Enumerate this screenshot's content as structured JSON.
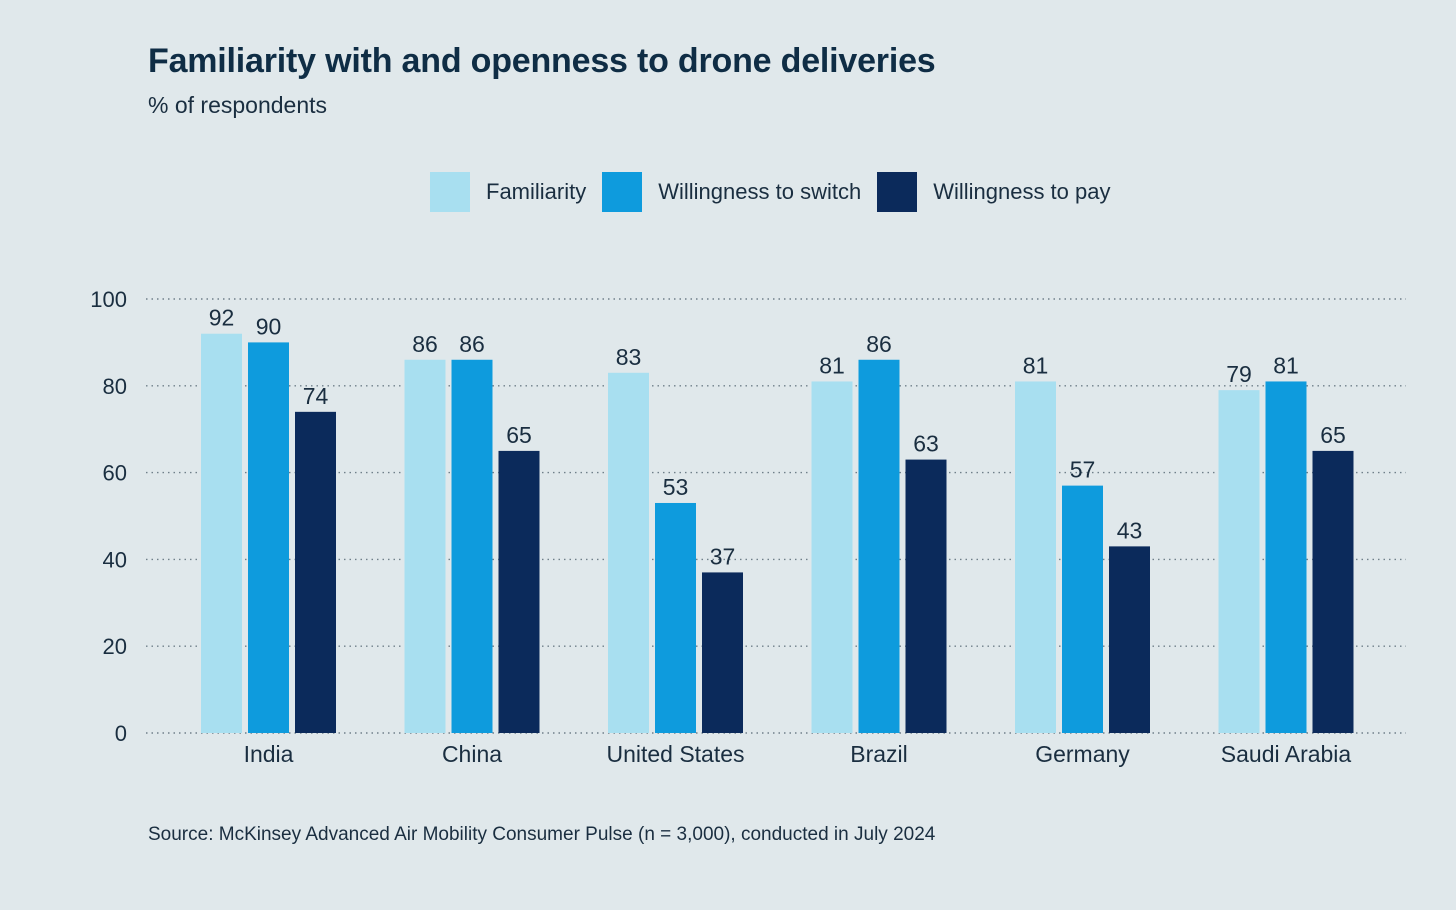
{
  "chart_data": {
    "type": "bar",
    "title": "Familiarity with and openness to drone deliveries",
    "subtitle": "% of respondents",
    "categories": [
      "India",
      "China",
      "United States",
      "Brazil",
      "Germany",
      "Saudi Arabia"
    ],
    "series": [
      {
        "name": "Familiarity",
        "color": "#a8dff0",
        "values": [
          92,
          86,
          83,
          81,
          81,
          79
        ]
      },
      {
        "name": "Willingness to switch",
        "color": "#0e9bdd",
        "values": [
          90,
          86,
          53,
          86,
          57,
          81
        ]
      },
      {
        "name": "Willingness to pay",
        "color": "#0b2a5b",
        "values": [
          74,
          65,
          37,
          63,
          43,
          65
        ]
      }
    ],
    "ylim": [
      0,
      100
    ],
    "yticks": [
      0,
      20,
      40,
      60,
      80,
      100
    ],
    "grid": true,
    "legend": "top-center",
    "source": "Source: McKinsey Advanced Air Mobility Consumer Pulse (n = 3,000), conducted in July 2024"
  }
}
